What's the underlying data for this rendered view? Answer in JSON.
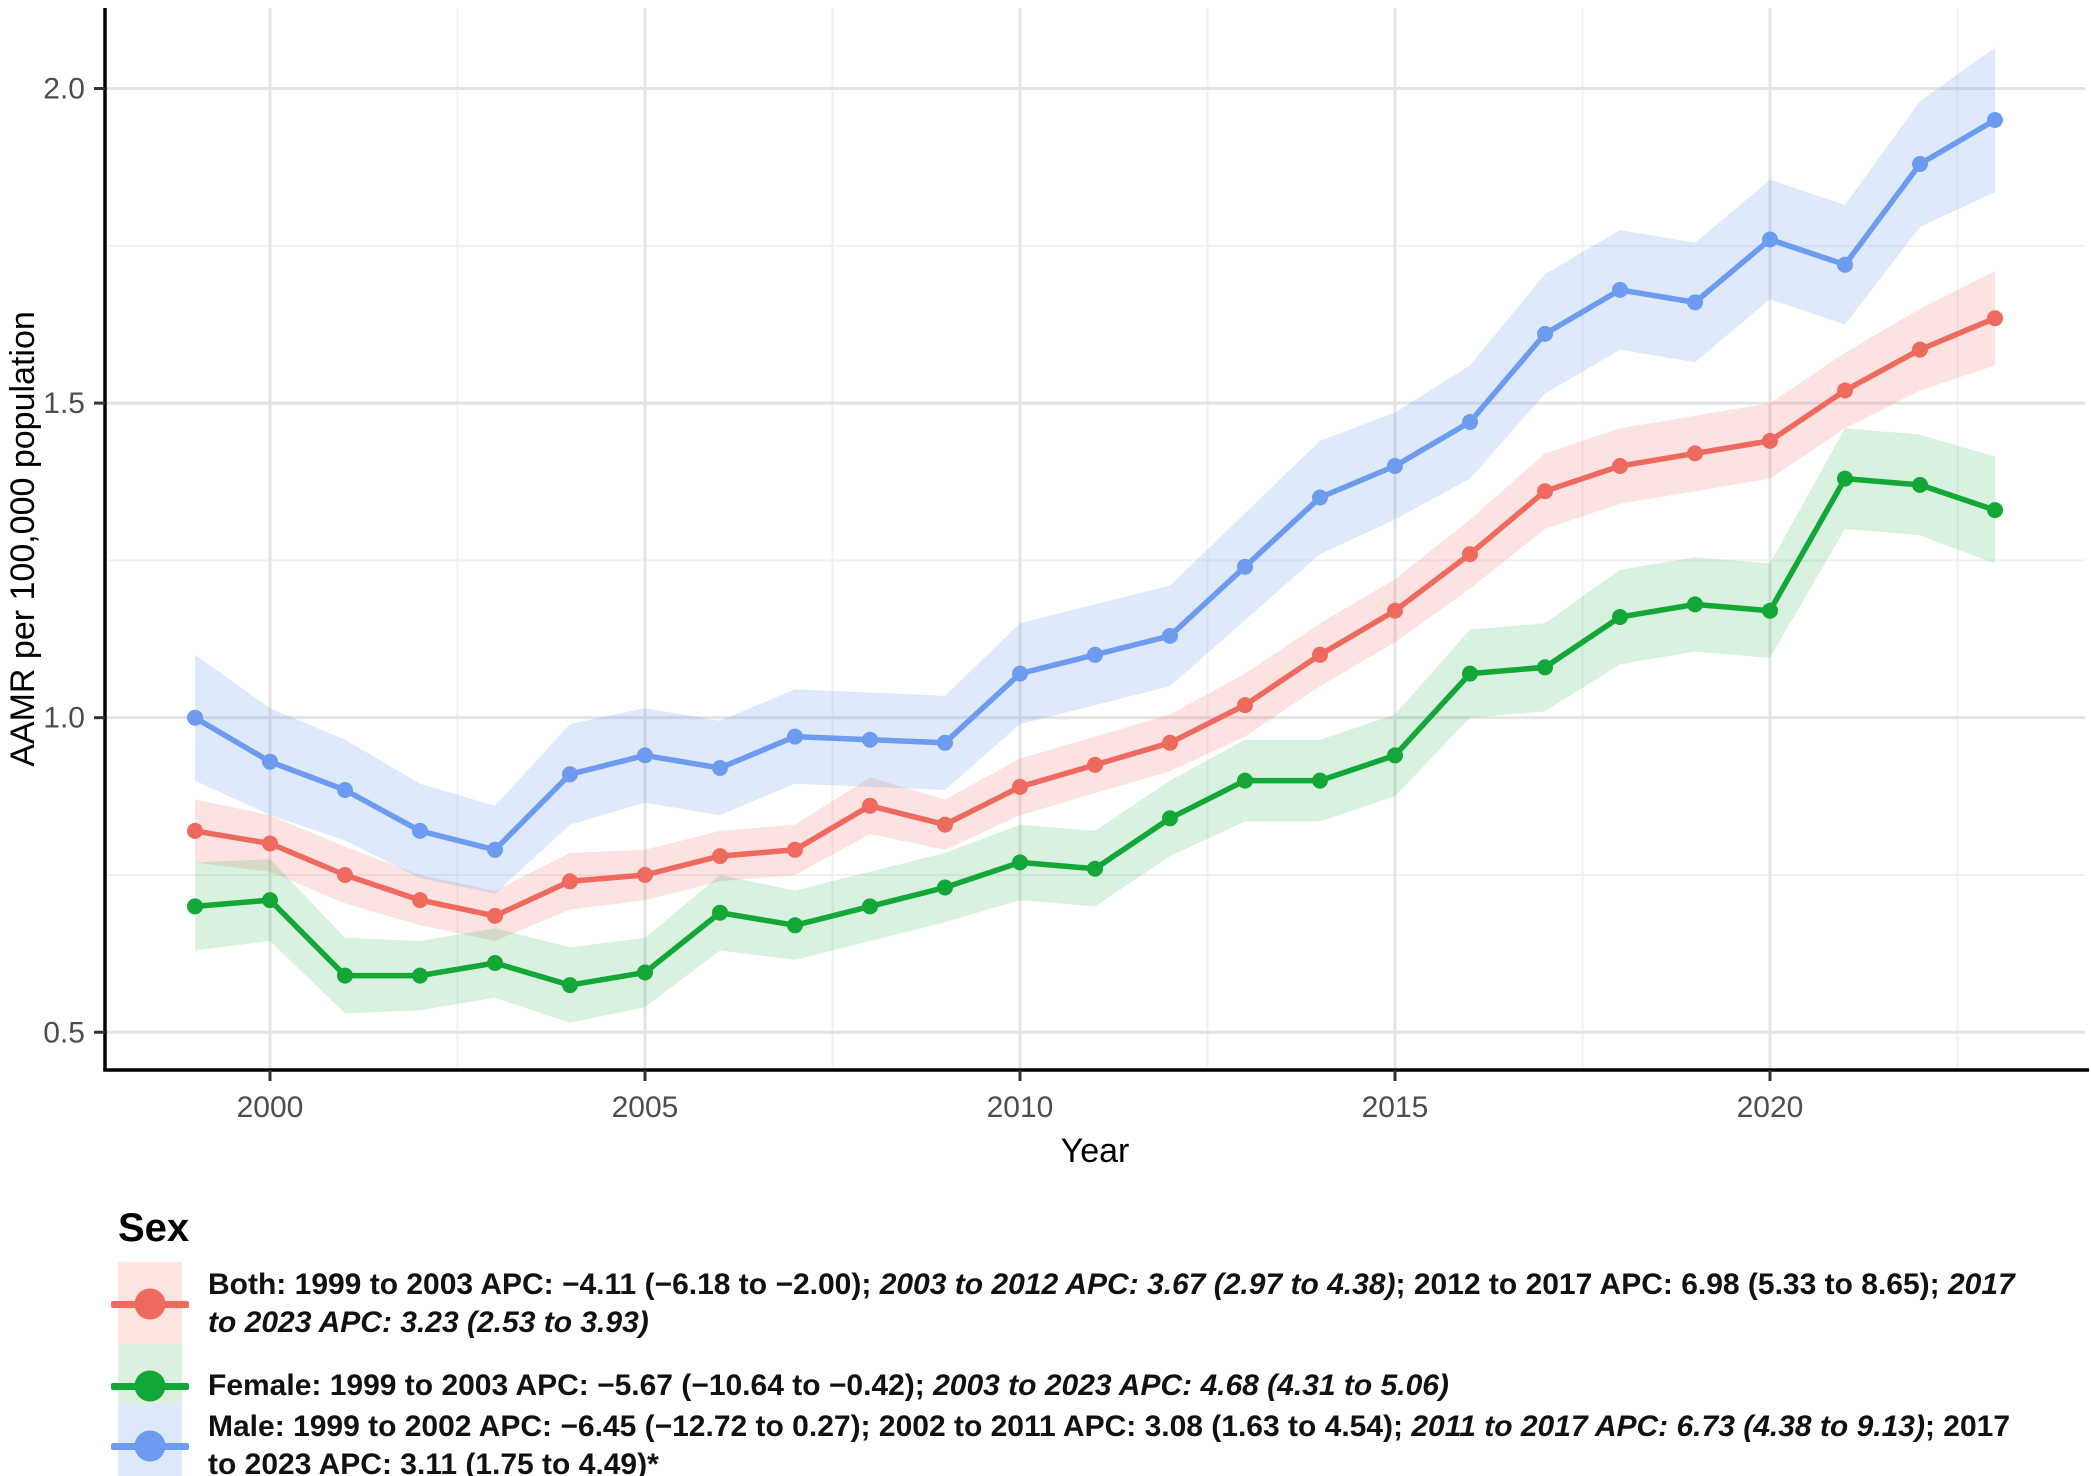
{
  "chart_data": {
    "type": "line",
    "title": "",
    "xlabel": "Year",
    "ylabel": "AAMR per 100,000 population",
    "legend_title": "Sex",
    "legend_position": "bottom",
    "grid": "major+minor",
    "x": [
      1999,
      2000,
      2001,
      2002,
      2003,
      2004,
      2005,
      2006,
      2007,
      2008,
      2009,
      2010,
      2011,
      2012,
      2013,
      2014,
      2015,
      2016,
      2017,
      2018,
      2019,
      2020,
      2021,
      2022,
      2023
    ],
    "x_ticks": [
      2000,
      2005,
      2010,
      2015,
      2020
    ],
    "x_minor_gridlines": [
      2002.5,
      2007.5,
      2012.5,
      2017.5,
      2022.5
    ],
    "y_ticks": [
      "0.5",
      "1.0",
      "1.5",
      "2.0"
    ],
    "y_minor_gridlines": [
      0.75,
      1.25,
      1.75
    ],
    "xlim": [
      1997.8,
      2024.2
    ],
    "ylim": [
      0.44,
      2.128
    ],
    "palette": {
      "grid_major": "#e4e4e4",
      "grid_minor": "#f1f1f1",
      "axis_line": "#000000",
      "tick_label": "#4d4d4d",
      "axis_title": "#000000"
    },
    "series": [
      {
        "name": "Both",
        "line_color": "#ee6a5f",
        "ribbon_rgba": "rgba(238,106,95,0.19)",
        "swatch_color": "#fce4e1",
        "values": [
          0.82,
          0.8,
          0.75,
          0.71,
          0.685,
          0.74,
          0.75,
          0.78,
          0.79,
          0.86,
          0.83,
          0.89,
          0.925,
          0.96,
          1.02,
          1.1,
          1.17,
          1.26,
          1.36,
          1.4,
          1.42,
          1.44,
          1.52,
          1.585,
          1.635
        ],
        "lower": [
          0.77,
          0.755,
          0.705,
          0.67,
          0.645,
          0.695,
          0.71,
          0.74,
          0.75,
          0.815,
          0.79,
          0.845,
          0.88,
          0.915,
          0.97,
          1.05,
          1.12,
          1.205,
          1.3,
          1.34,
          1.36,
          1.38,
          1.46,
          1.52,
          1.56
        ],
        "upper": [
          0.87,
          0.845,
          0.795,
          0.75,
          0.725,
          0.785,
          0.79,
          0.82,
          0.83,
          0.905,
          0.87,
          0.935,
          0.97,
          1.005,
          1.07,
          1.15,
          1.22,
          1.315,
          1.42,
          1.46,
          1.48,
          1.5,
          1.58,
          1.65,
          1.71
        ],
        "legend_segments": [
          {
            "text": "Both: 1999 to 2003 APC: −4.11 (−6.18 to −2.00); ",
            "italic": false
          },
          {
            "text": "2003 to 2012 APC: 3.67 (2.97 to 4.38)",
            "italic": true
          },
          {
            "text": "; 2012 to 2017 APC: 6.98 (5.33 to 8.65); ",
            "italic": false
          },
          {
            "text": "2017 to 2023 APC: 3.23 (2.53 to 3.93)",
            "italic": true
          }
        ]
      },
      {
        "name": "Female",
        "line_color": "#12a737",
        "ribbon_rgba": "rgba(18,167,55,0.16)",
        "swatch_color": "#dcf0e0",
        "values": [
          0.7,
          0.71,
          0.59,
          0.59,
          0.61,
          0.575,
          0.595,
          0.69,
          0.67,
          0.7,
          0.73,
          0.77,
          0.76,
          0.84,
          0.9,
          0.9,
          0.94,
          1.07,
          1.08,
          1.16,
          1.18,
          1.17,
          1.38,
          1.37,
          1.33
        ],
        "lower": [
          0.63,
          0.645,
          0.53,
          0.535,
          0.555,
          0.515,
          0.54,
          0.63,
          0.615,
          0.645,
          0.675,
          0.71,
          0.7,
          0.78,
          0.835,
          0.835,
          0.875,
          1.0,
          1.01,
          1.085,
          1.105,
          1.095,
          1.3,
          1.29,
          1.245
        ],
        "upper": [
          0.77,
          0.775,
          0.65,
          0.645,
          0.665,
          0.635,
          0.65,
          0.75,
          0.725,
          0.755,
          0.785,
          0.83,
          0.82,
          0.9,
          0.965,
          0.965,
          1.005,
          1.14,
          1.15,
          1.235,
          1.255,
          1.245,
          1.46,
          1.45,
          1.415
        ],
        "legend_segments": [
          {
            "text": "Female: 1999 to 2003 APC: −5.67 (−10.64 to −0.42); ",
            "italic": false
          },
          {
            "text": "2003 to 2023 APC: 4.68 (4.31 to 5.06)",
            "italic": true
          }
        ]
      },
      {
        "name": "Male",
        "line_color": "#6d9bf0",
        "ribbon_rgba": "rgba(109,155,240,0.22)",
        "swatch_color": "#dde8fb",
        "values": [
          1.0,
          0.93,
          0.885,
          0.82,
          0.79,
          0.91,
          0.94,
          0.92,
          0.97,
          0.965,
          0.96,
          1.07,
          1.1,
          1.13,
          1.24,
          1.35,
          1.4,
          1.47,
          1.61,
          1.68,
          1.66,
          1.76,
          1.72,
          1.88,
          1.95
        ],
        "lower": [
          0.9,
          0.845,
          0.805,
          0.745,
          0.72,
          0.83,
          0.865,
          0.845,
          0.895,
          0.89,
          0.885,
          0.99,
          1.02,
          1.05,
          1.155,
          1.26,
          1.315,
          1.38,
          1.515,
          1.585,
          1.565,
          1.665,
          1.625,
          1.78,
          1.835
        ],
        "upper": [
          1.1,
          1.015,
          0.965,
          0.895,
          0.86,
          0.99,
          1.015,
          0.995,
          1.045,
          1.04,
          1.035,
          1.15,
          1.18,
          1.21,
          1.325,
          1.44,
          1.485,
          1.56,
          1.705,
          1.775,
          1.755,
          1.855,
          1.815,
          1.98,
          2.065
        ],
        "legend_segments": [
          {
            "text": "Male: 1999 to 2002 APC: −6.45 (−12.72 to 0.27); 2002 to 2011 APC: 3.08 (1.63 to 4.54); ",
            "italic": false
          },
          {
            "text": "2011 to 2017 APC: 6.73 (4.38 to 9.13)",
            "italic": true
          },
          {
            "text": "; 2017 to 2023 APC: 3.11 (1.75 to 4.49)*",
            "italic": false
          }
        ]
      }
    ]
  }
}
